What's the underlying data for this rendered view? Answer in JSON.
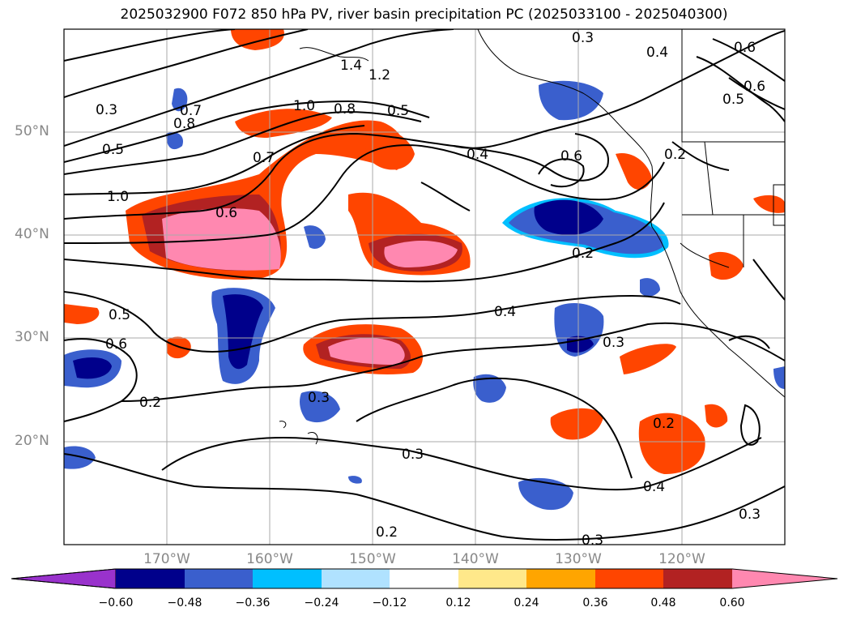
{
  "title": "2025032900 F072 850 hPa PV, river basin precipitation PC (2025033100 - 2025040300)",
  "lat_labels": [
    "50°N",
    "40°N",
    "30°N",
    "20°N"
  ],
  "lon_labels": [
    "170°W",
    "160°W",
    "150°W",
    "140°W",
    "130°W",
    "120°W"
  ],
  "colorbar": {
    "ticks": [
      "−0.60",
      "−0.48",
      "−0.36",
      "−0.24",
      "−0.12",
      "0.12",
      "0.24",
      "0.36",
      "0.48",
      "0.60"
    ],
    "colors": [
      "#9932cc",
      "#00008b",
      "#3a5fcd",
      "#00bfff",
      "#b0e2ff",
      "#ffffff",
      "#ffe88a",
      "#ffa500",
      "#ff4500",
      "#b22222",
      "#ff88b0"
    ],
    "extend": "both"
  },
  "contour_labels": [
    "0.3",
    "0.4",
    "0.7",
    "0.8",
    "1.0",
    "1.4",
    "1.2",
    "0.8",
    "0.5",
    "0.3",
    "0.5",
    "0.7",
    "1.0",
    "0.6",
    "0.4",
    "0.6",
    "0.2",
    "0.6",
    "0.5",
    "0.6",
    "0.2",
    "0.4",
    "0.3",
    "0.5",
    "0.6",
    "0.2",
    "0.3",
    "0.3",
    "0.2",
    "0.4",
    "0.3",
    "0.2",
    "0.3"
  ],
  "map": {
    "projection": "cylindrical",
    "extent": {
      "lon": [
        -180,
        -110
      ],
      "lat": [
        10,
        60
      ]
    },
    "contour_variable": "850 hPa PV",
    "shading_variable": "river basin precipitation PC"
  }
}
